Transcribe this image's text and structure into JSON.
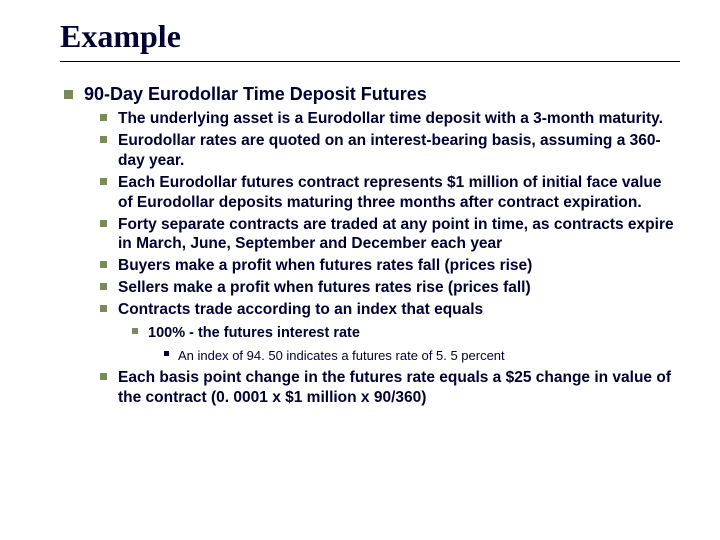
{
  "title": "Example",
  "colors": {
    "text": "#000033",
    "bullet_green": "#7a8a5a",
    "bullet_dark": "#000033",
    "background": "#ffffff",
    "rule": "#000033"
  },
  "fonts": {
    "title_family": "Times New Roman",
    "body_family": "Arial",
    "title_size_pt": 24,
    "lvl1_size_pt": 14,
    "lvl2_size_pt": 12,
    "lvl3_size_pt": 11,
    "lvl4_size_pt": 10
  },
  "content": {
    "lvl1": {
      "text": "90-Day Eurodollar Time Deposit Futures",
      "lvl2": [
        "The underlying asset is a Eurodollar time deposit with a 3-month maturity.",
        "Eurodollar rates are quoted on an interest-bearing basis, assuming a 360-day year.",
        "Each Eurodollar futures contract represents $1 million of initial face value of Eurodollar deposits maturing three months after contract expiration.",
        "Forty separate contracts are traded at any point in time, as contracts expire in March, June, September and December each year",
        "Buyers make a profit when futures rates fall (prices rise)",
        "Sellers make a profit when futures rates rise (prices fall)",
        "Contracts trade according to an index that equals",
        "Each basis point change in the futures rate equals a $25 change in value of the contract (0. 0001 x $1 million x 90/360)"
      ],
      "lvl3_after_index": 6,
      "lvl3": {
        "text": "100% - the futures interest rate",
        "lvl4": [
          "An index of 94. 50 indicates a futures rate of 5. 5 percent"
        ]
      }
    }
  }
}
